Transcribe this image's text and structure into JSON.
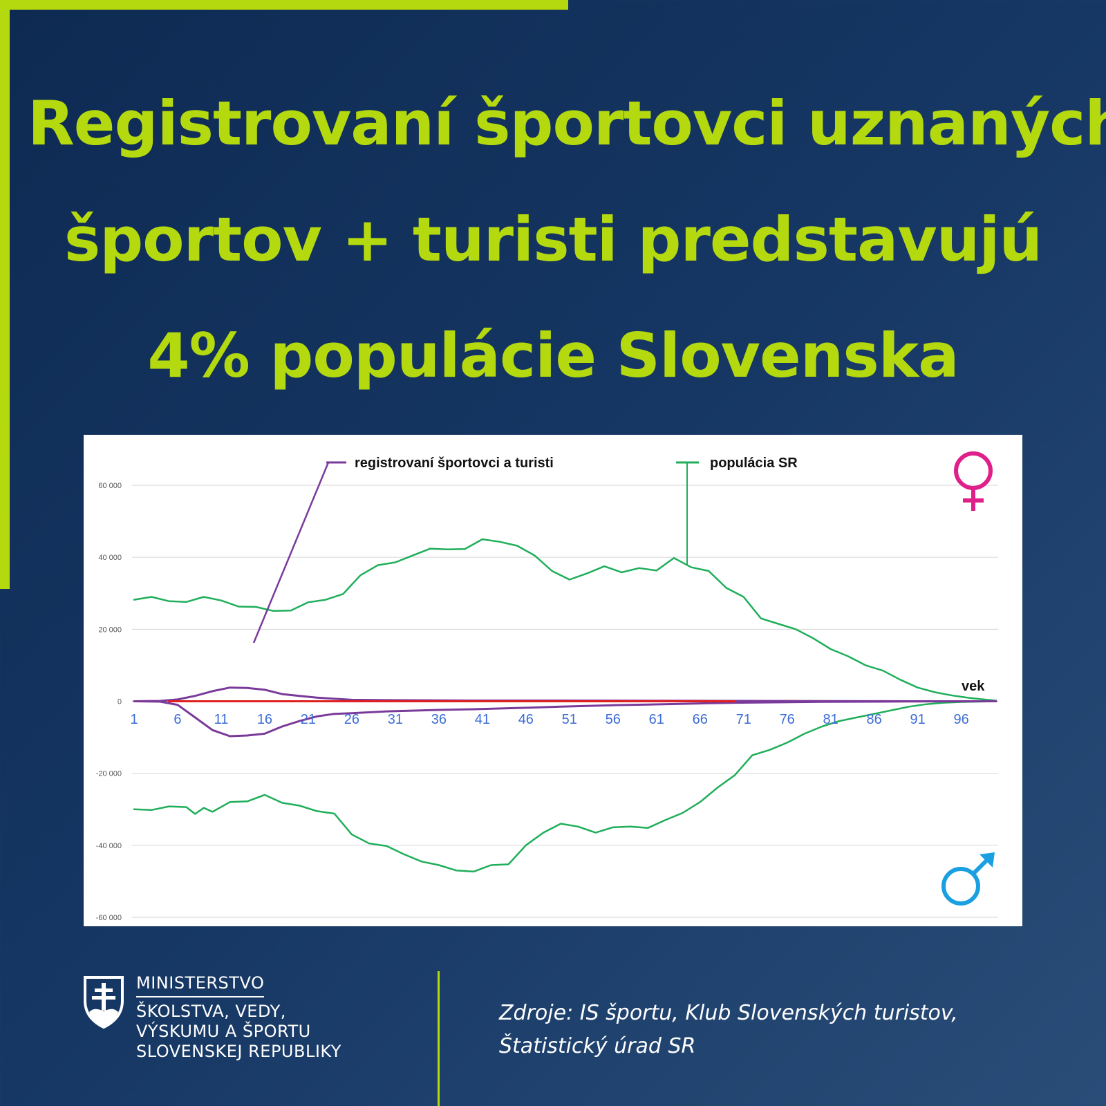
{
  "headline": {
    "line1": "Registrovaní športovci uznaných",
    "line2": "športov + turisti predstavujú",
    "line3": "4% populácie Slovenska"
  },
  "colors": {
    "accent": "#b5d90f",
    "background": "#163764",
    "population": "#1fae5a",
    "athletes": "#7a3a9a",
    "zero_line": "#e02020",
    "female_symbol": "#e0208a",
    "male_symbol": "#1aa0e0"
  },
  "chart_data": {
    "type": "line",
    "x_tick_labels": [
      "1",
      "6",
      "11",
      "16",
      "21",
      "26",
      "31",
      "36",
      "41",
      "46",
      "51",
      "56",
      "61",
      "66",
      "71",
      "76",
      "81",
      "86",
      "91",
      "96"
    ],
    "x_axis_label": "vek",
    "y_tick_labels": [
      "60 000",
      "40 000",
      "20 000",
      "0",
      "-20 000",
      "-40 000",
      "-60 000"
    ],
    "ylim": [
      -60000,
      60000
    ],
    "xlim": [
      1,
      100
    ],
    "grid": true,
    "legend": [
      "registrovaní športovci a turisti",
      "populácia SR"
    ],
    "series": [
      {
        "name": "populácia SR",
        "group": "female",
        "color": "#1fae5a",
        "x": [
          1,
          3,
          5,
          7,
          9,
          11,
          13,
          15,
          17,
          19,
          21,
          23,
          25,
          27,
          29,
          31,
          33,
          35,
          37,
          39,
          41,
          43,
          45,
          47,
          49,
          51,
          53,
          55,
          57,
          59,
          61,
          63,
          65,
          67,
          69,
          71,
          73,
          75,
          77,
          79,
          81,
          83,
          85,
          87,
          89,
          91,
          93,
          95,
          97,
          99,
          100
        ],
        "y": [
          28200,
          29000,
          27800,
          27600,
          29000,
          28000,
          26300,
          26200,
          25100,
          25200,
          27500,
          28200,
          29800,
          35000,
          37800,
          38600,
          40500,
          42400,
          42200,
          42300,
          45000,
          44300,
          43200,
          40500,
          36200,
          33800,
          35500,
          37500,
          35800,
          37000,
          36300,
          39800,
          37200,
          36200,
          31500,
          29000,
          23000,
          21500,
          20000,
          17500,
          14500,
          12500,
          10000,
          8500,
          6000,
          3800,
          2500,
          1600,
          900,
          400,
          200
        ]
      },
      {
        "name": "populácia SR",
        "group": "male",
        "color": "#1fae5a",
        "x": [
          1,
          3,
          5,
          7,
          8,
          9,
          10,
          12,
          14,
          16,
          18,
          20,
          22,
          24,
          26,
          28,
          30,
          32,
          34,
          36,
          38,
          40,
          42,
          44,
          46,
          48,
          50,
          52,
          54,
          56,
          58,
          60,
          62,
          64,
          66,
          68,
          70,
          72,
          74,
          76,
          78,
          80,
          82,
          84,
          86,
          88,
          90,
          92,
          94,
          96,
          98,
          100
        ],
        "y": [
          -30000,
          -30200,
          -29200,
          -29400,
          -31300,
          -29600,
          -30700,
          -28000,
          -27800,
          -26000,
          -28200,
          -29000,
          -30500,
          -31200,
          -37000,
          -39500,
          -40200,
          -42500,
          -44500,
          -45500,
          -47000,
          -47300,
          -45500,
          -45300,
          -40000,
          -36500,
          -34000,
          -34800,
          -36500,
          -35000,
          -34800,
          -35200,
          -33000,
          -31000,
          -28000,
          -24000,
          -20500,
          -15000,
          -13500,
          -11500,
          -9000,
          -7000,
          -5500,
          -4500,
          -3500,
          -2500,
          -1500,
          -800,
          -400,
          -200,
          -100,
          0
        ]
      },
      {
        "name": "registrovaní športovci a turisti",
        "group": "female",
        "color": "#7a3a9a",
        "x": [
          1,
          4,
          6,
          8,
          10,
          12,
          14,
          16,
          18,
          20,
          22,
          24,
          26,
          30,
          40,
          50,
          60,
          70,
          80,
          90,
          100
        ],
        "y": [
          0,
          100,
          500,
          1500,
          2800,
          3800,
          3700,
          3200,
          2000,
          1500,
          1000,
          700,
          400,
          300,
          200,
          200,
          150,
          100,
          50,
          0,
          0
        ]
      },
      {
        "name": "registrovaní športovci a turisti",
        "group": "male",
        "color": "#7a3a9a",
        "x": [
          1,
          4,
          6,
          8,
          10,
          12,
          14,
          16,
          18,
          20,
          22,
          24,
          26,
          30,
          36,
          40,
          46,
          50,
          56,
          60,
          66,
          70,
          80,
          90,
          100
        ],
        "y": [
          0,
          -100,
          -1000,
          -4500,
          -8000,
          -9700,
          -9500,
          -9000,
          -7000,
          -5500,
          -4200,
          -3500,
          -3300,
          -2800,
          -2400,
          -2200,
          -1800,
          -1500,
          -1100,
          -900,
          -600,
          -400,
          -150,
          -50,
          0
        ]
      },
      {
        "name": "",
        "group": "zero",
        "color": "#e02020",
        "x": [
          5,
          70
        ],
        "y": [
          0,
          0
        ]
      }
    ]
  },
  "ministry": {
    "line1": "MINISTERSTVO",
    "line2": "ŠKOLSTVA, VEDY,",
    "line3": "VÝSKUMU A ŠPORTU",
    "line4": "SLOVENSKEJ REPUBLIKY"
  },
  "source": {
    "line1": "Zdroje: IS športu, Klub Slovenských turistov,",
    "line2": "Štatistický úrad SR"
  },
  "icons": {
    "female": "female-symbol-icon",
    "male": "male-symbol-icon",
    "logo": "slovak-coat-of-arms-icon"
  }
}
